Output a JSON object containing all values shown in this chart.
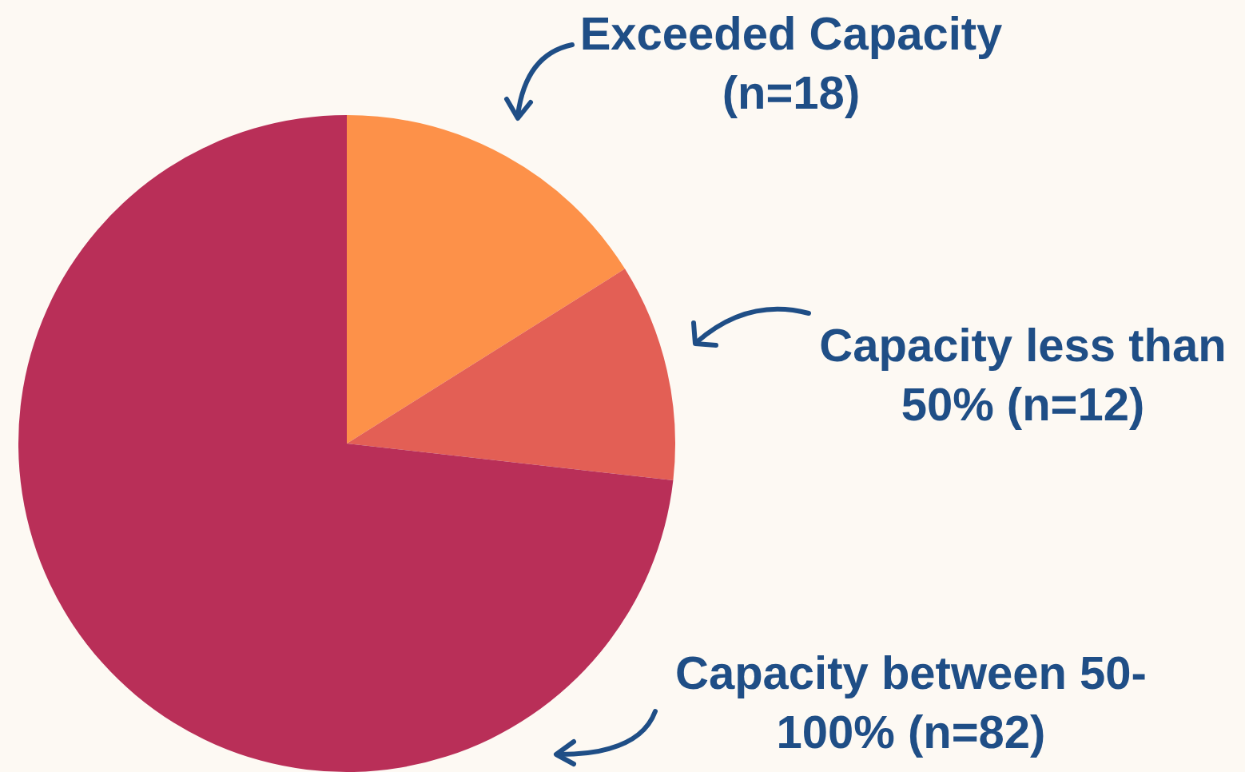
{
  "chart_data": {
    "type": "pie",
    "categories": [
      "Exceeded Capacity (n=18)",
      "Capacity less than 50% (n=12)",
      "Capacity between 50-100% (n=82)"
    ],
    "values": [
      18,
      12,
      82
    ],
    "colors": [
      "#fd9149",
      "#e35f55",
      "#b92f58"
    ]
  }
}
